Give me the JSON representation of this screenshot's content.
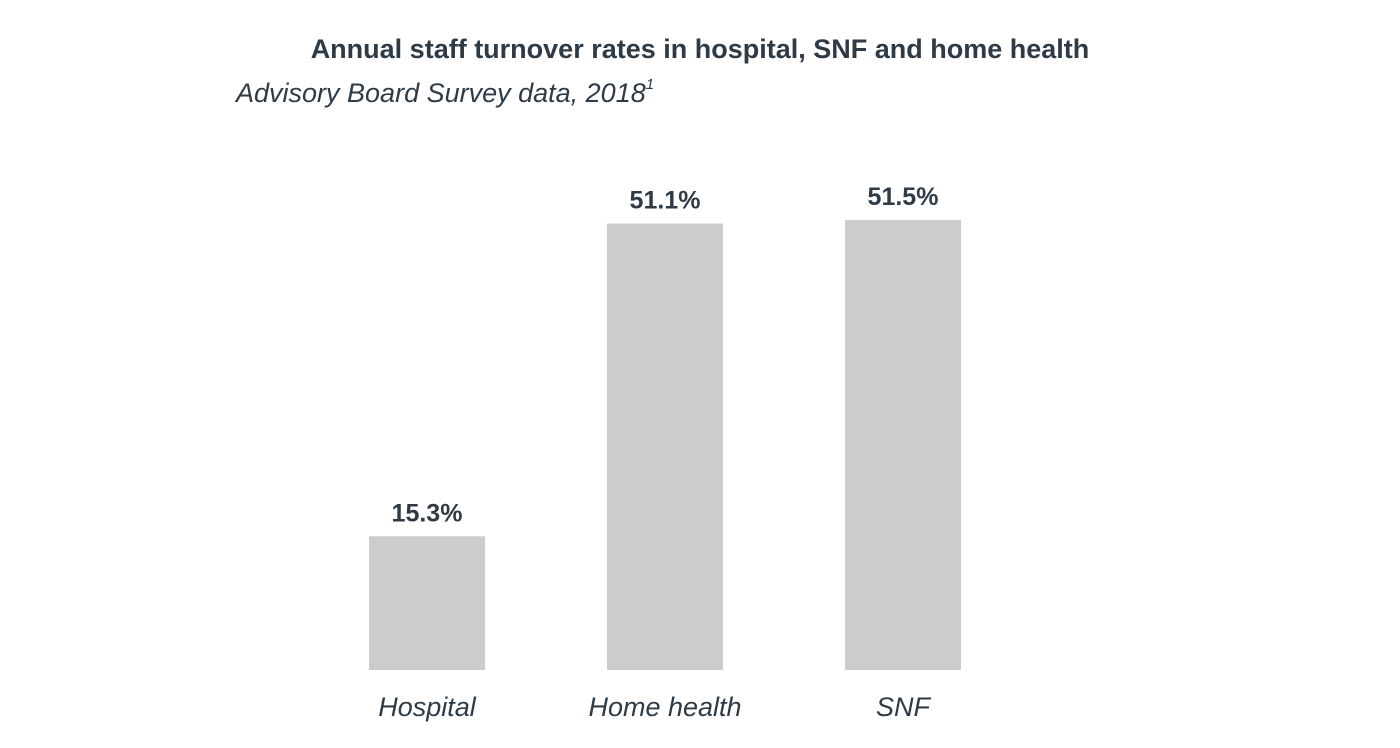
{
  "chart_data": {
    "type": "bar",
    "title": "Annual staff turnover rates in hospital, SNF and home health",
    "subtitle": "Advisory Board Survey data, 2018",
    "subtitle_superscript": "1",
    "categories": [
      "Hospital",
      "Home health",
      "SNF"
    ],
    "values": [
      15.3,
      51.1,
      51.5
    ],
    "value_labels": [
      "15.3%",
      "51.1%",
      "51.5%"
    ],
    "xlabel": "",
    "ylabel": "",
    "ylim": [
      0,
      51.5
    ],
    "grid": false,
    "bar_color": "#cccccc",
    "text_color": "#2e3b46"
  }
}
